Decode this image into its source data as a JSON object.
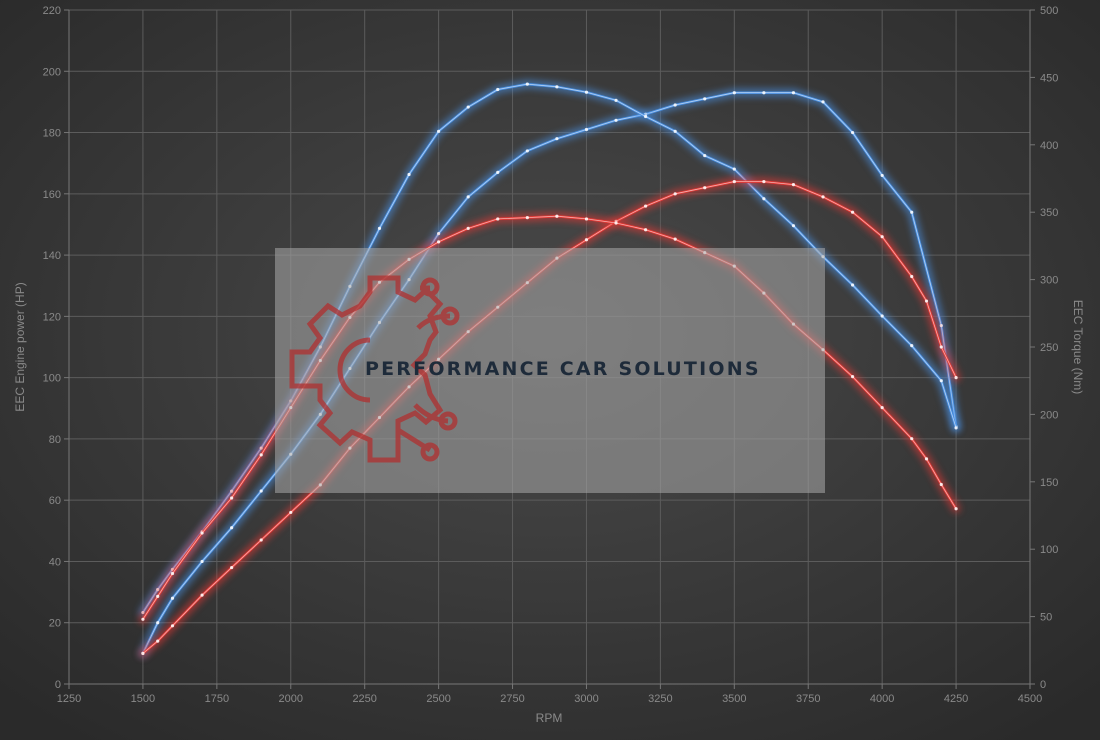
{
  "chart_data": {
    "type": "line",
    "title": "",
    "xlabel": "RPM",
    "ylabel_left": "EEC Engine power (HP)",
    "ylabel_right": "EEC Torque (Nm)",
    "xlim": [
      1250,
      4500
    ],
    "ylim_left": [
      0,
      220
    ],
    "ylim_right": [
      0,
      500
    ],
    "x_ticks": [
      "1250",
      "1500",
      "1750",
      "2000",
      "2250",
      "2500",
      "2750",
      "3000",
      "3250",
      "3500",
      "3750",
      "4000",
      "4250",
      "4500"
    ],
    "y_left_ticks": [
      "0",
      "20",
      "40",
      "60",
      "80",
      "100",
      "120",
      "140",
      "160",
      "180",
      "200",
      "220"
    ],
    "y_right_ticks": [
      "0",
      "50",
      "100",
      "150",
      "200",
      "250",
      "300",
      "350",
      "400",
      "450",
      "500"
    ],
    "grid": true,
    "series": [
      {
        "axis": "left",
        "color": "#4a90e2",
        "x": [
          1500,
          1550,
          1600,
          1700,
          1800,
          1900,
          2000,
          2100,
          2200,
          2300,
          2400,
          2500,
          2600,
          2700,
          2800,
          2900,
          3000,
          3100,
          3200,
          3300,
          3400,
          3500,
          3600,
          3700,
          3800,
          3900,
          4000,
          4100,
          4200,
          4250
        ],
        "values": [
          10,
          20,
          28,
          40,
          51,
          63,
          75,
          88,
          103,
          118,
          132,
          147,
          159,
          167,
          174,
          178,
          181,
          184,
          186,
          189,
          191,
          193,
          193,
          193,
          190,
          180,
          166,
          154,
          117,
          84
        ]
      },
      {
        "axis": "right",
        "color": "#4a90e2",
        "x": [
          1500,
          1550,
          1600,
          1700,
          1800,
          1900,
          2000,
          2100,
          2200,
          2300,
          2400,
          2500,
          2600,
          2700,
          2800,
          2900,
          3000,
          3100,
          3200,
          3300,
          3400,
          3500,
          3600,
          3700,
          3800,
          3900,
          4000,
          4100,
          4200,
          4250
        ],
        "values": [
          53,
          70,
          85,
          113,
          143,
          175,
          210,
          250,
          295,
          338,
          378,
          410,
          428,
          441,
          445,
          443,
          439,
          433,
          421,
          410,
          392,
          382,
          360,
          340,
          317,
          296,
          273,
          251,
          225,
          190
        ]
      },
      {
        "axis": "left",
        "color": "#e53935",
        "x": [
          1500,
          1550,
          1600,
          1700,
          1800,
          1900,
          2000,
          2100,
          2200,
          2300,
          2400,
          2500,
          2600,
          2700,
          2800,
          2900,
          3000,
          3100,
          3200,
          3300,
          3400,
          3500,
          3600,
          3700,
          3800,
          3900,
          4000,
          4100,
          4150,
          4200,
          4250
        ],
        "values": [
          10,
          14,
          19,
          29,
          38,
          47,
          56,
          65,
          77,
          87,
          97,
          106,
          115,
          123,
          131,
          139,
          145,
          151,
          156,
          160,
          162,
          164,
          164,
          163,
          159,
          154,
          146,
          133,
          125,
          110,
          100
        ]
      },
      {
        "axis": "right",
        "color": "#e53935",
        "x": [
          1500,
          1550,
          1600,
          1700,
          1800,
          1900,
          2000,
          2100,
          2200,
          2300,
          2400,
          2500,
          2600,
          2700,
          2800,
          2900,
          3000,
          3100,
          3200,
          3300,
          3400,
          3500,
          3600,
          3700,
          3800,
          3900,
          4000,
          4100,
          4150,
          4200,
          4250
        ],
        "values": [
          48,
          65,
          82,
          112,
          138,
          170,
          205,
          240,
          272,
          298,
          315,
          328,
          338,
          345,
          346,
          347,
          345,
          342,
          337,
          330,
          320,
          310,
          290,
          267,
          248,
          228,
          205,
          182,
          167,
          148,
          130
        ]
      }
    ]
  },
  "logo": {
    "text": "PERFORMANCE CAR SOLUTIONS",
    "gear_color": "#b03030",
    "panel_color": "#a9a9a9"
  }
}
